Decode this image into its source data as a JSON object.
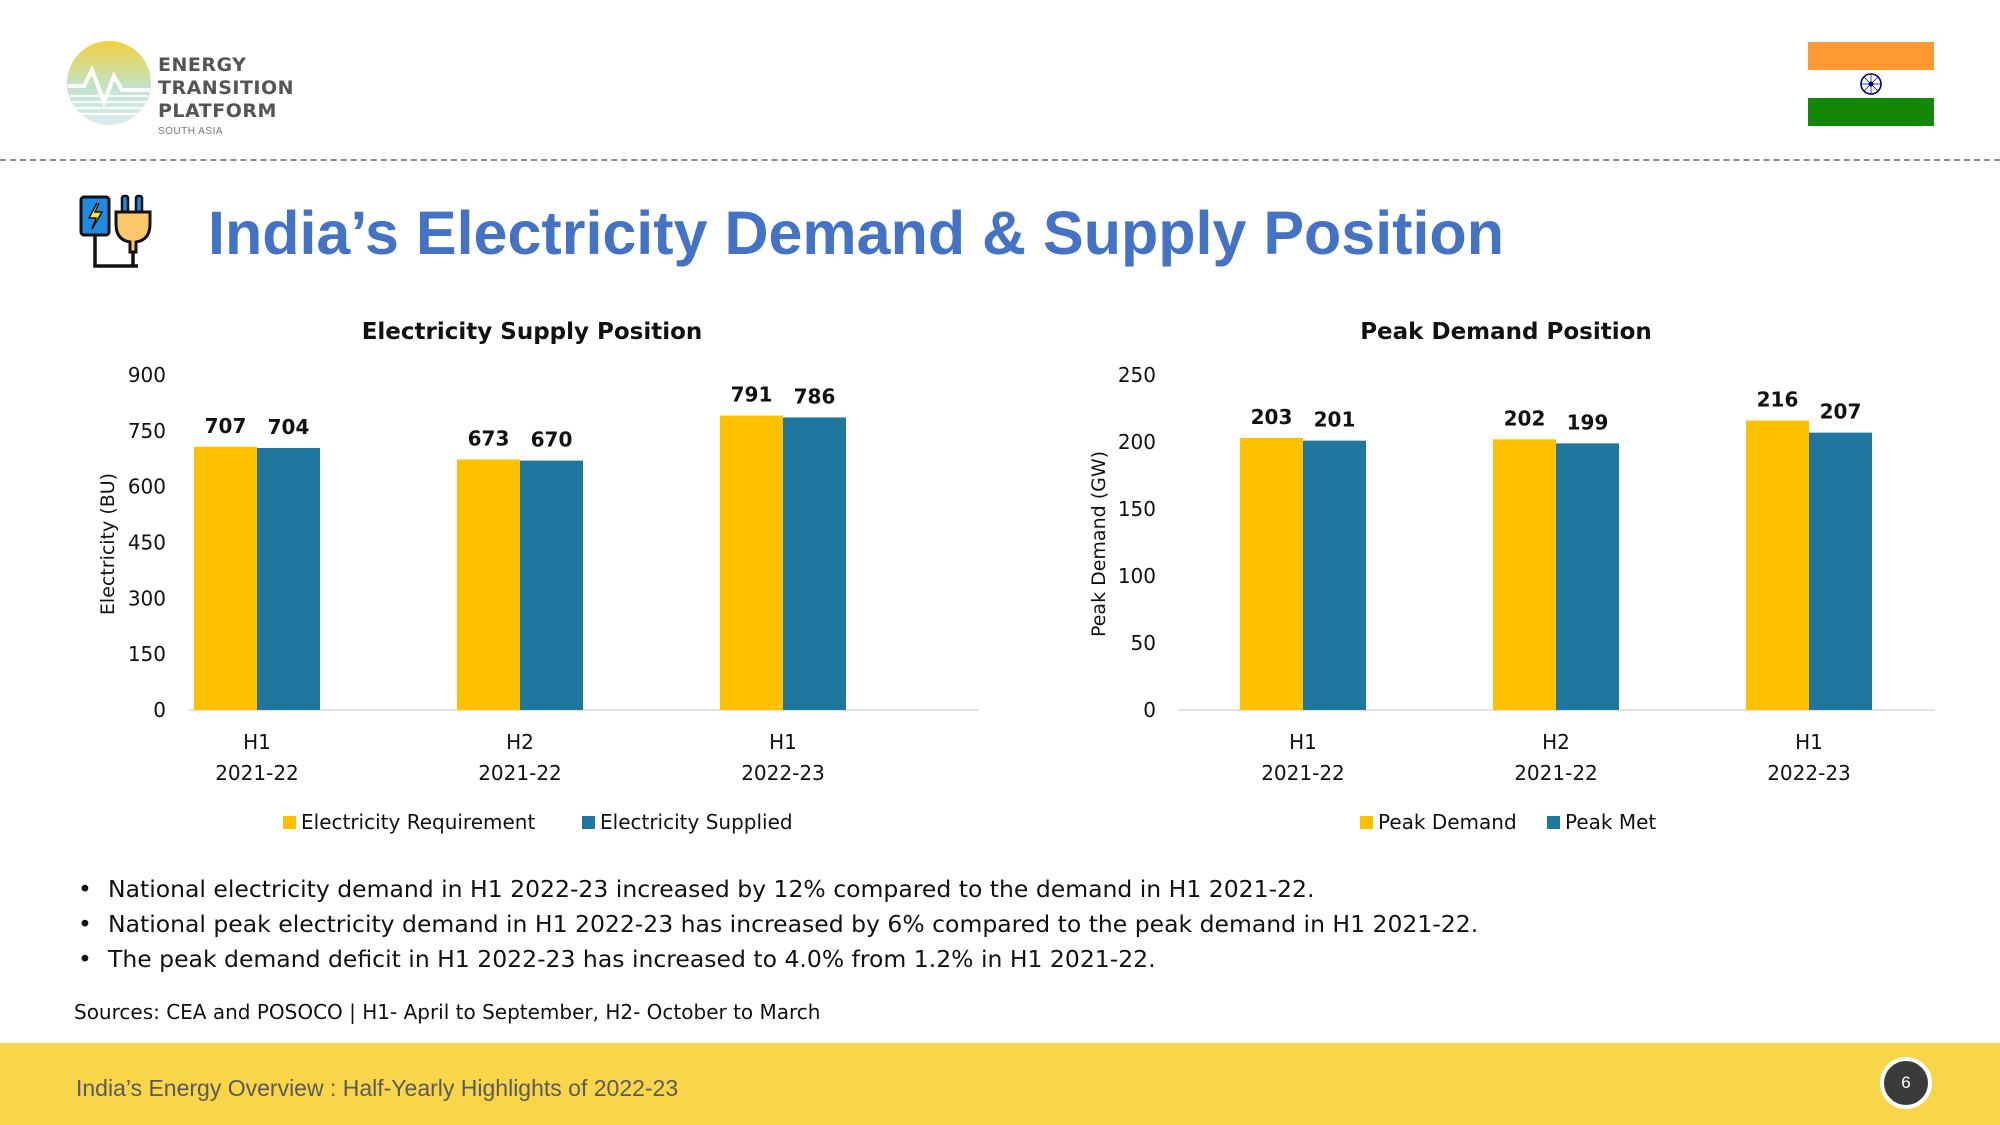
{
  "header": {
    "logo_line1": "ENERGY TRANSITION",
    "logo_line2": "PLATFORM",
    "logo_line3": "SOUTH ASIA",
    "page_title": "India’s Electricity Demand & Supply Position"
  },
  "colors": {
    "title_blue": "#4472C4",
    "series_yellow": "#FFC000",
    "series_blue": "#1F77A0",
    "footer_yellow": "#F9D649"
  },
  "chart_data": [
    {
      "type": "bar",
      "title": "Electricity Supply Position",
      "ylabel": "Electricity (BU)",
      "xlabel": "",
      "categories": [
        [
          "H1",
          "2021-22"
        ],
        [
          "H2",
          "2021-22"
        ],
        [
          "H1",
          "2022-23"
        ]
      ],
      "series": [
        {
          "name": "Electricity Requirement",
          "values": [
            707,
            673,
            791
          ],
          "color": "#FFC000"
        },
        {
          "name": "Electricity Supplied",
          "values": [
            704,
            670,
            786
          ],
          "color": "#1F77A0"
        }
      ],
      "ylim": [
        0,
        900
      ],
      "yticks": [
        0,
        150,
        300,
        450,
        600,
        750,
        900
      ],
      "legend": "bottom",
      "grid": false
    },
    {
      "type": "bar",
      "title": "Peak Demand Position",
      "ylabel": "Peak Demand (GW)",
      "xlabel": "",
      "categories": [
        [
          "H1",
          "2021-22"
        ],
        [
          "H2",
          "2021-22"
        ],
        [
          "H1",
          "2022-23"
        ]
      ],
      "series": [
        {
          "name": "Peak Demand",
          "values": [
            203,
            202,
            216
          ],
          "color": "#FFC000"
        },
        {
          "name": "Peak Met",
          "values": [
            201,
            199,
            207
          ],
          "color": "#1F77A0"
        }
      ],
      "ylim": [
        0,
        250
      ],
      "yticks": [
        0,
        50,
        100,
        150,
        200,
        250
      ],
      "legend": "bottom",
      "grid": false
    }
  ],
  "bullets": [
    "National electricity demand in H1 2022-23 increased by 12% compared to the demand in H1 2021-22.",
    "National peak electricity demand in H1 2022-23 has increased by 6% compared to the peak demand in H1 2021-22.",
    "The peak demand deficit in H1 2022-23 has increased to 4.0% from 1.2% in H1 2021-22."
  ],
  "bullet_symbol": "•",
  "sources": "Sources: CEA and POSOCO |  H1- April to September, H2- October to March",
  "footer": {
    "text": "India’s Energy Overview : Half-Yearly Highlights of 2022-23",
    "page_number": "6"
  }
}
